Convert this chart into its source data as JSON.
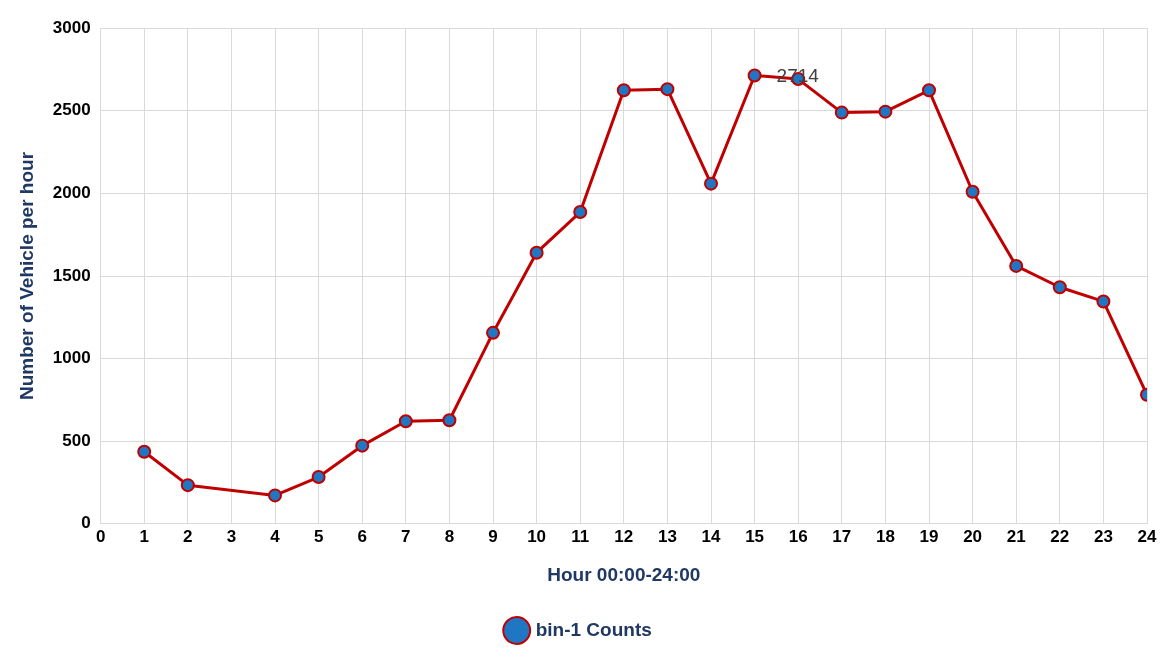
{
  "chart_data": {
    "type": "line",
    "xlabel": "Hour 00:00-24:00",
    "ylabel": "Number of Vehicle per hour",
    "x": [
      1,
      2,
      4,
      5,
      6,
      7,
      8,
      9,
      10,
      11,
      12,
      13,
      14,
      15,
      16,
      17,
      18,
      19,
      20,
      21,
      22,
      23,
      24
    ],
    "series": [
      {
        "name": "bin-1 Counts",
        "color": "#c00000",
        "values": [
          436,
          234,
          172,
          283,
          473,
          621,
          627,
          1156,
          1641,
          1887,
          2624,
          2631,
          2059,
          2714,
          2692,
          2489,
          2495,
          2624,
          2010,
          1561,
          1432,
          1346,
          781
        ],
        "value_labels": [
          null,
          null,
          null,
          null,
          null,
          null,
          null,
          null,
          null,
          null,
          null,
          null,
          null,
          "2714",
          null,
          null,
          null,
          null,
          null,
          null,
          null,
          null,
          null
        ]
      }
    ],
    "xlim": [
      0,
      24
    ],
    "xticks": [
      0,
      1,
      2,
      3,
      4,
      5,
      6,
      7,
      8,
      9,
      10,
      11,
      12,
      13,
      14,
      15,
      16,
      17,
      18,
      19,
      20,
      21,
      22,
      23,
      24
    ],
    "ylim": [
      0,
      3000
    ],
    "yticks": [
      0,
      500,
      1000,
      1500,
      2000,
      2500,
      3000
    ],
    "grid": true,
    "legend": "bottom",
    "marker": "circle",
    "line_style": "solid"
  }
}
